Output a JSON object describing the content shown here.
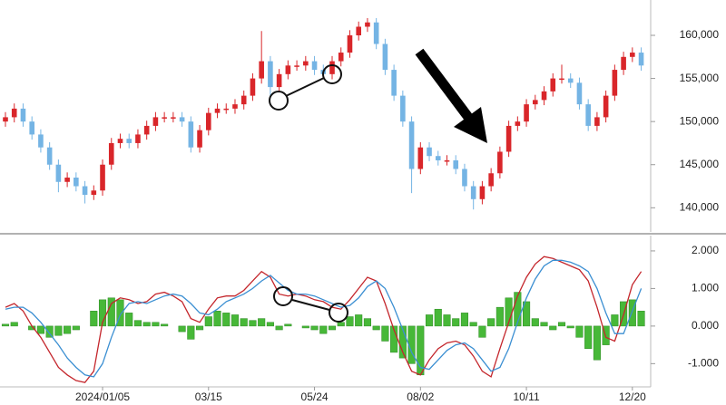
{
  "chart_data": [
    {
      "type": "candlestick",
      "categories": [
        null,
        null,
        null,
        null,
        null,
        null,
        null,
        null,
        null,
        null,
        null,
        "2024/01/05",
        null,
        null,
        null,
        null,
        null,
        null,
        null,
        null,
        null,
        null,
        null,
        "03/15",
        null,
        null,
        null,
        null,
        null,
        null,
        null,
        null,
        null,
        null,
        null,
        "05/24",
        null,
        null,
        null,
        null,
        null,
        null,
        null,
        null,
        null,
        null,
        null,
        "08/02",
        null,
        null,
        null,
        null,
        null,
        null,
        null,
        null,
        null,
        null,
        null,
        "10/11",
        null,
        null,
        null,
        null,
        null,
        null,
        null,
        null,
        null,
        null,
        null,
        "12/20",
        null
      ],
      "open": [
        150000,
        150500,
        151500,
        150000,
        148500,
        147000,
        145000,
        143000,
        143500,
        142500,
        141500,
        142000,
        145000,
        147500,
        148000,
        147500,
        148500,
        149500,
        150500,
        150500,
        150500,
        150000,
        147000,
        149000,
        151000,
        151500,
        151500,
        152000,
        153000,
        155000,
        157000,
        154000,
        155500,
        156500,
        156500,
        157000,
        156000,
        155500,
        157000,
        158000,
        160000,
        161000,
        161500,
        159000,
        156000,
        153000,
        150000,
        144500,
        147000,
        146000,
        145500,
        145500,
        144500,
        142500,
        141000,
        142500,
        144000,
        146500,
        149500,
        150000,
        152000,
        152500,
        153500,
        155000,
        155000,
        154500,
        152000,
        149500,
        150500,
        153000,
        156000,
        157500,
        158000
      ],
      "high": [
        151100,
        152100,
        152100,
        150600,
        149100,
        147600,
        145600,
        144100,
        144100,
        143100,
        142600,
        145600,
        148100,
        148600,
        148600,
        149100,
        150100,
        151100,
        151100,
        151100,
        151100,
        150600,
        149600,
        151600,
        152100,
        152100,
        152600,
        153600,
        155600,
        160500,
        157600,
        156100,
        157100,
        157100,
        157600,
        157600,
        156600,
        157600,
        158600,
        160600,
        161600,
        162000,
        162000,
        159600,
        156600,
        153600,
        150600,
        147600,
        147600,
        146600,
        146100,
        146100,
        145100,
        143100,
        143100,
        144600,
        147100,
        150100,
        150600,
        152600,
        153100,
        154100,
        155600,
        156600,
        155600,
        155100,
        152600,
        151100,
        153600,
        156600,
        158100,
        158600,
        158600
      ],
      "low": [
        149400,
        149900,
        149400,
        147900,
        146400,
        144400,
        141800,
        142400,
        141900,
        140500,
        140900,
        141400,
        144400,
        146900,
        146900,
        146900,
        147900,
        148900,
        149900,
        149900,
        149400,
        146400,
        146400,
        148400,
        150400,
        150900,
        150900,
        151400,
        152400,
        154400,
        152800,
        153400,
        154900,
        155900,
        155900,
        155400,
        154900,
        154900,
        156400,
        157400,
        159400,
        160400,
        158400,
        155400,
        152400,
        149400,
        141700,
        143900,
        145400,
        144900,
        144900,
        143900,
        141900,
        139800,
        140400,
        141900,
        143400,
        145900,
        148900,
        149400,
        151400,
        151900,
        152900,
        154400,
        153900,
        151400,
        148900,
        148900,
        149900,
        152400,
        155400,
        156900,
        155900
      ],
      "close": [
        150500,
        151500,
        150000,
        148500,
        147000,
        145000,
        143000,
        143500,
        142500,
        141500,
        142000,
        145000,
        147500,
        148000,
        147500,
        148500,
        149500,
        150500,
        150500,
        150500,
        150000,
        147000,
        149000,
        151000,
        151500,
        151500,
        152000,
        153000,
        155000,
        157000,
        154000,
        155500,
        156500,
        156500,
        157000,
        156000,
        155500,
        157000,
        158000,
        160000,
        161000,
        161500,
        159000,
        156000,
        153000,
        150000,
        144500,
        147000,
        146000,
        145500,
        145500,
        144500,
        142500,
        141000,
        142500,
        144000,
        146500,
        149500,
        150000,
        152000,
        152500,
        153500,
        155000,
        155000,
        154500,
        152000,
        149500,
        150500,
        153000,
        156000,
        157500,
        158000,
        156500
      ],
      "up_color": "#d9262a",
      "down_color": "#74b4e4",
      "ylim": [
        137300,
        164100
      ],
      "yticks": [
        {
          "value": 140000,
          "label": "140,000"
        },
        {
          "value": 145000,
          "label": "145,000"
        },
        {
          "value": 150000,
          "label": "150,000"
        },
        {
          "value": 155000,
          "label": "155,000"
        },
        {
          "value": 160000,
          "label": "160,000"
        }
      ]
    },
    {
      "type": "line",
      "ylim": [
        -1.57,
        2.36
      ],
      "yticks": [
        {
          "value": -1,
          "label": "-1.000"
        },
        {
          "value": 0,
          "label": "0.000"
        },
        {
          "value": 1,
          "label": "1.000"
        },
        {
          "value": 2,
          "label": "2.000"
        }
      ],
      "series": [
        {
          "style": "bar",
          "color": "#47b838",
          "values": [
            0.05,
            0.1,
            0.0,
            -0.1,
            -0.2,
            -0.3,
            -0.25,
            -0.2,
            -0.1,
            0.0,
            0.4,
            0.7,
            0.75,
            0.7,
            0.35,
            0.15,
            0.1,
            0.1,
            0.05,
            0.0,
            -0.15,
            -0.35,
            -0.1,
            0.25,
            0.4,
            0.35,
            0.3,
            0.2,
            0.15,
            0.2,
            0.1,
            -0.1,
            0.05,
            0.0,
            -0.05,
            -0.1,
            -0.2,
            -0.1,
            0.1,
            0.25,
            0.3,
            0.2,
            -0.1,
            -0.4,
            -0.7,
            -0.85,
            -1.0,
            -1.3,
            0.3,
            0.45,
            0.3,
            0.2,
            0.35,
            0.1,
            -0.3,
            0.2,
            0.5,
            0.75,
            0.9,
            0.65,
            0.2,
            0.1,
            -0.1,
            0.1,
            -0.05,
            -0.3,
            -0.6,
            -0.9,
            -0.5,
            0.3,
            0.65,
            0.7,
            0.4
          ]
        },
        {
          "color": "#c4262c",
          "values": [
            0.5,
            0.6,
            0.4,
            0.0,
            -0.3,
            -0.7,
            -1.1,
            -1.3,
            -1.45,
            -1.5,
            -1.2,
            0.1,
            0.6,
            0.75,
            0.7,
            0.6,
            0.65,
            0.85,
            0.9,
            0.8,
            0.65,
            0.2,
            0.1,
            0.45,
            0.75,
            0.8,
            0.8,
            0.95,
            1.2,
            1.45,
            1.3,
            0.85,
            0.8,
            0.85,
            0.8,
            0.7,
            0.65,
            0.5,
            0.45,
            0.7,
            1.0,
            1.3,
            1.2,
            0.6,
            -0.1,
            -0.7,
            -1.2,
            -1.3,
            -0.9,
            -0.6,
            -0.45,
            -0.4,
            -0.5,
            -0.8,
            -1.2,
            -1.35,
            -0.6,
            0.1,
            0.8,
            1.3,
            1.65,
            1.85,
            1.8,
            1.7,
            1.6,
            1.5,
            1.2,
            0.5,
            -0.3,
            -0.4,
            0.3,
            1.1,
            1.45
          ]
        },
        {
          "color": "#3b8fd2",
          "values": [
            0.45,
            0.5,
            0.5,
            0.35,
            0.1,
            -0.2,
            -0.5,
            -0.85,
            -1.1,
            -1.3,
            -1.35,
            -1.0,
            -0.3,
            0.3,
            0.6,
            0.65,
            0.6,
            0.7,
            0.8,
            0.85,
            0.8,
            0.6,
            0.35,
            0.3,
            0.45,
            0.65,
            0.75,
            0.85,
            1.0,
            1.2,
            1.35,
            1.15,
            0.95,
            0.85,
            0.85,
            0.8,
            0.7,
            0.6,
            0.5,
            0.55,
            0.75,
            1.05,
            1.2,
            1.0,
            0.5,
            -0.1,
            -0.7,
            -1.1,
            -1.15,
            -0.9,
            -0.65,
            -0.5,
            -0.45,
            -0.6,
            -0.9,
            -1.2,
            -1.1,
            -0.6,
            0.1,
            0.75,
            1.25,
            1.6,
            1.75,
            1.75,
            1.7,
            1.6,
            1.45,
            1.0,
            0.35,
            -0.2,
            -0.2,
            0.4,
            1.0
          ]
        }
      ]
    }
  ]
}
